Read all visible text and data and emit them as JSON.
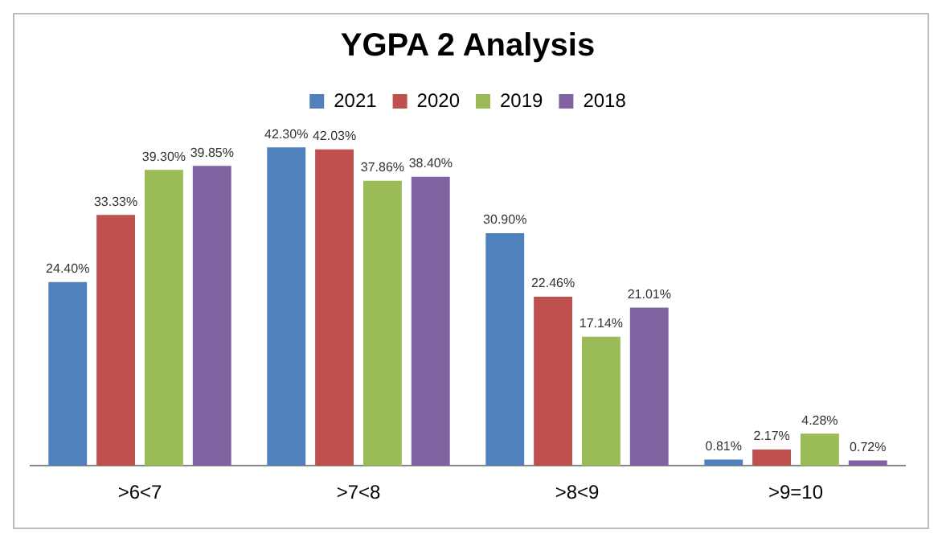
{
  "chart_data": {
    "type": "bar",
    "title": "YGPA 2 Analysis",
    "categories": [
      ">6<7",
      ">7<8",
      ">8<9",
      ">9=10"
    ],
    "series": [
      {
        "name": "2021",
        "color": "#4f81bd",
        "values": [
          24.4,
          42.3,
          30.9,
          0.81
        ],
        "value_labels": [
          "24.40%",
          "42.30%",
          "30.90%",
          "0.81%"
        ]
      },
      {
        "name": "2020",
        "color": "#c0504d",
        "values": [
          33.33,
          42.03,
          22.46,
          2.17
        ],
        "value_labels": [
          "33.33%",
          "42.03%",
          "22.46%",
          "2.17%"
        ]
      },
      {
        "name": "2019",
        "color": "#9bbb59",
        "values": [
          39.3,
          37.86,
          17.14,
          4.28
        ],
        "value_labels": [
          "39.30%",
          "37.86%",
          "17.14%",
          "4.28%"
        ]
      },
      {
        "name": "2018",
        "color": "#8064a2",
        "values": [
          39.85,
          38.4,
          21.01,
          0.72
        ],
        "value_labels": [
          "39.85%",
          "38.40%",
          "21.01%",
          "0.72%"
        ]
      }
    ],
    "legend": "top",
    "grid": false,
    "tick_labels": "x"
  }
}
